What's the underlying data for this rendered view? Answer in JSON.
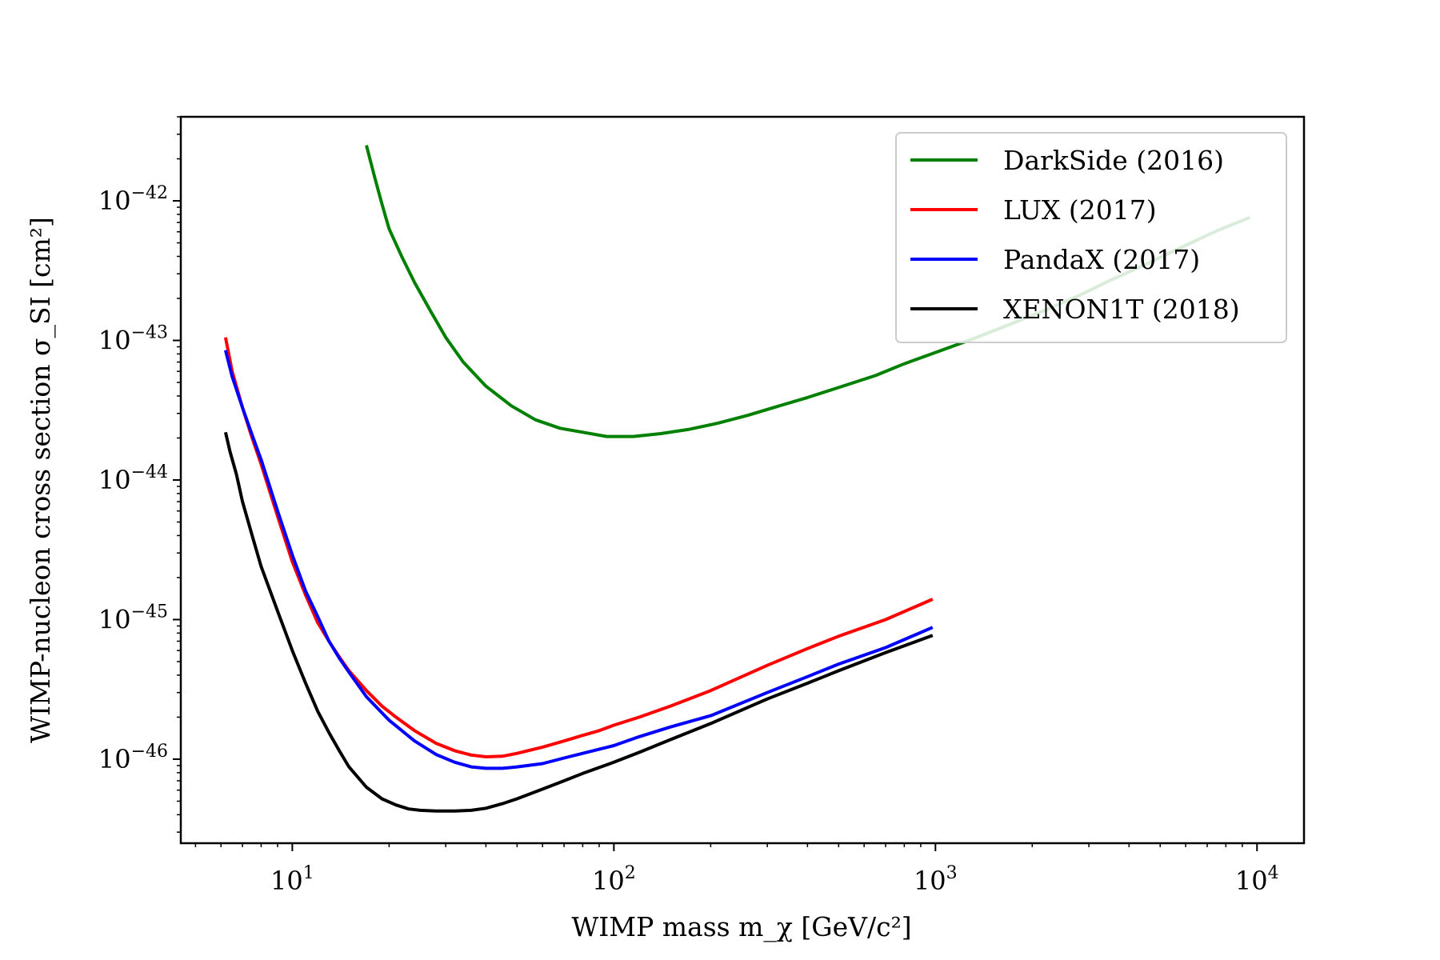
{
  "chart_data": {
    "type": "line",
    "xlabel": "WIMP mass m_χ [GeV/c²]",
    "ylabel": "WIMP-nucleon cross section σ_SI [cm²]",
    "x_scale": "log",
    "y_scale": "log",
    "xlim": [
      4.5,
      14000
    ],
    "ylim": [
      2.5e-47,
      4e-42
    ],
    "x_ticks": [
      {
        "value": 10,
        "base": "10",
        "exp": "1"
      },
      {
        "value": 100,
        "base": "10",
        "exp": "2"
      },
      {
        "value": 1000,
        "base": "10",
        "exp": "3"
      },
      {
        "value": 10000,
        "base": "10",
        "exp": "4"
      }
    ],
    "y_ticks": [
      {
        "value": 1e-42,
        "base": "10",
        "exp": "−42"
      },
      {
        "value": 1e-43,
        "base": "10",
        "exp": "−43"
      },
      {
        "value": 1e-44,
        "base": "10",
        "exp": "−44"
      },
      {
        "value": 1e-45,
        "base": "10",
        "exp": "−45"
      },
      {
        "value": 1e-46,
        "base": "10",
        "exp": "−46"
      }
    ],
    "legend_position": "top-right",
    "grid": false,
    "series": [
      {
        "name": "DarkSide (2016)",
        "color": "#008000",
        "x": [
          17,
          18,
          19,
          20,
          22,
          24,
          27,
          30,
          34,
          40,
          48,
          57,
          68,
          80,
          95,
          115,
          140,
          170,
          210,
          260,
          320,
          400,
          500,
          650,
          800,
          1000,
          1300,
          1700,
          2200,
          2800,
          3500,
          4500,
          6000,
          7500,
          9500
        ],
        "y": [
          2.5e-42,
          1.5e-42,
          9.5e-43,
          6.3e-43,
          3.9e-43,
          2.6e-43,
          1.6e-43,
          1.05e-43,
          7e-44,
          4.7e-44,
          3.4e-44,
          2.7e-44,
          2.35e-44,
          2.2e-44,
          2.05e-44,
          2.05e-44,
          2.15e-44,
          2.3e-44,
          2.55e-44,
          2.9e-44,
          3.35e-44,
          3.9e-44,
          4.6e-44,
          5.6e-44,
          6.8e-44,
          8.2e-44,
          1.02e-43,
          1.3e-43,
          1.65e-43,
          2.1e-43,
          2.7e-43,
          3.5e-43,
          4.8e-43,
          6.1e-43,
          7.6e-43
        ]
      },
      {
        "name": "LUX (2017)",
        "color": "#ff0000",
        "x": [
          6.2,
          6.5,
          7,
          7.5,
          8,
          9,
          10,
          11,
          12,
          13,
          14,
          15,
          17,
          19,
          21,
          24,
          28,
          32,
          36,
          40,
          45,
          50,
          60,
          70,
          80,
          90,
          100,
          120,
          150,
          200,
          300,
          400,
          500,
          700,
          980
        ],
        "y": [
          1.05e-43,
          6e-44,
          3.3e-44,
          2e-44,
          1.3e-44,
          5.5e-45,
          2.6e-45,
          1.5e-45,
          9.5e-46,
          7e-46,
          5.4e-46,
          4.3e-46,
          3.1e-46,
          2.4e-46,
          2e-46,
          1.6e-46,
          1.3e-46,
          1.15e-46,
          1.07e-46,
          1.04e-46,
          1.05e-46,
          1.1e-46,
          1.22e-46,
          1.35e-46,
          1.48e-46,
          1.6e-46,
          1.75e-46,
          2e-46,
          2.4e-46,
          3.1e-46,
          4.7e-46,
          6.2e-46,
          7.6e-46,
          1e-45,
          1.4e-45
        ]
      },
      {
        "name": "PandaX (2017)",
        "color": "#0000ff",
        "x": [
          6.2,
          6.5,
          7,
          7.5,
          8,
          9,
          10,
          11,
          12,
          13,
          14,
          15,
          17,
          20,
          24,
          28,
          32,
          36,
          40,
          45,
          50,
          60,
          70,
          80,
          100,
          120,
          150,
          200,
          300,
          400,
          500,
          700,
          980
        ],
        "y": [
          8.5e-44,
          5.5e-44,
          3.3e-44,
          2.1e-44,
          1.4e-44,
          6e-45,
          2.9e-45,
          1.6e-45,
          1.05e-45,
          7e-46,
          5.3e-46,
          4.2e-46,
          2.8e-46,
          1.9e-46,
          1.35e-46,
          1.08e-46,
          9.5e-47,
          8.8e-47,
          8.6e-47,
          8.6e-47,
          8.8e-47,
          9.3e-47,
          1.02e-46,
          1.1e-46,
          1.25e-46,
          1.45e-46,
          1.7e-46,
          2.05e-46,
          3e-46,
          3.9e-46,
          4.8e-46,
          6.3e-46,
          8.8e-46
        ]
      },
      {
        "name": "XENON1T (2018)",
        "color": "#000000",
        "x": [
          6.2,
          6.4,
          6.7,
          7,
          7.5,
          8,
          9,
          10,
          11,
          12,
          13,
          14,
          15,
          17,
          19,
          21,
          23,
          25,
          28,
          32,
          36,
          40,
          45,
          50,
          60,
          70,
          80,
          100,
          120,
          150,
          200,
          300,
          400,
          500,
          700,
          980
        ],
        "y": [
          2.2e-44,
          1.6e-44,
          1.1e-44,
          7e-45,
          4e-45,
          2.4e-45,
          1.15e-45,
          6e-46,
          3.5e-46,
          2.2e-46,
          1.55e-46,
          1.15e-46,
          8.8e-47,
          6.3e-47,
          5.2e-47,
          4.7e-47,
          4.4e-47,
          4.3e-47,
          4.25e-47,
          4.25e-47,
          4.3e-47,
          4.45e-47,
          4.8e-47,
          5.2e-47,
          6.1e-47,
          7e-47,
          7.9e-47,
          9.5e-47,
          1.12e-46,
          1.38e-46,
          1.8e-46,
          2.7e-46,
          3.5e-46,
          4.3e-46,
          5.8e-46,
          7.7e-46
        ]
      }
    ]
  }
}
